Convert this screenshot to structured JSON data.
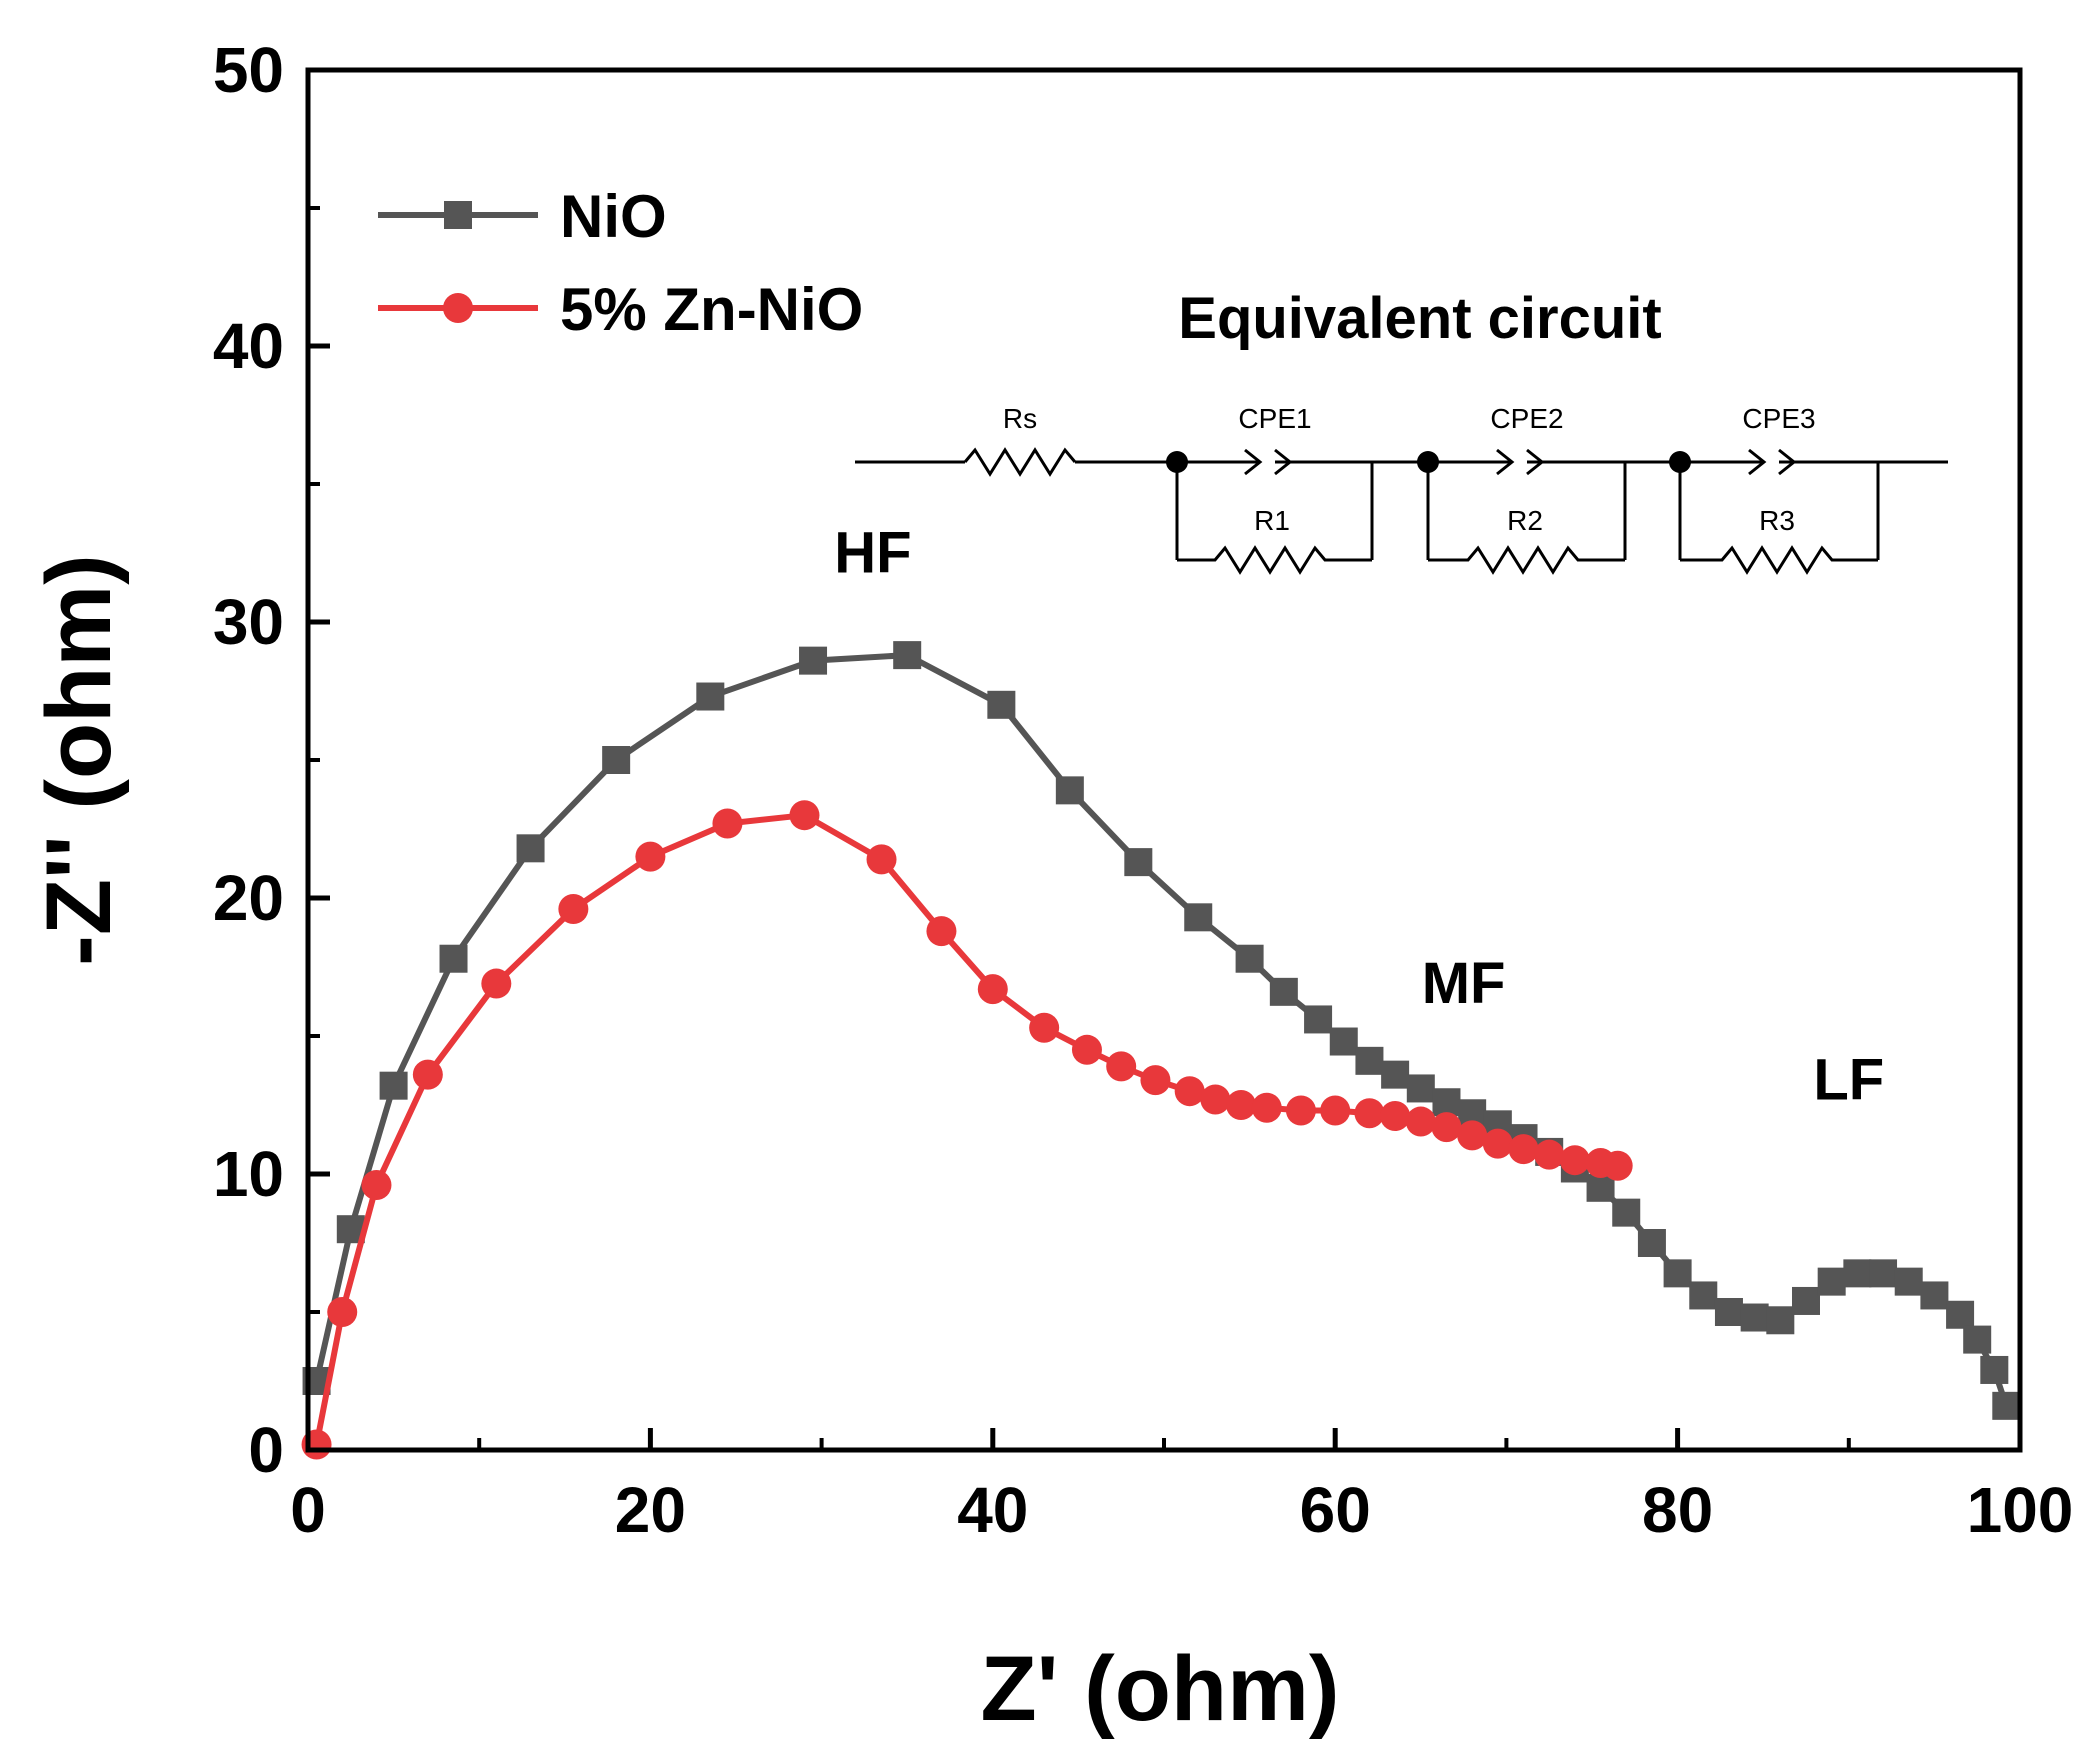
{
  "chart_data": {
    "type": "line",
    "title": "",
    "xlabel": "Z' (ohm)",
    "ylabel": "-Z'' (ohm)",
    "xlim": [
      0,
      100
    ],
    "ylim": [
      0,
      50
    ],
    "xticks": [
      "0",
      "20",
      "40",
      "60",
      "80",
      "100"
    ],
    "yticks": [
      "0",
      "10",
      "20",
      "30",
      "40",
      "50"
    ],
    "legend_position": "top-left",
    "series": [
      {
        "name": "NiO",
        "color": "#555555",
        "marker": "square",
        "points": [
          [
            0.5,
            2.5
          ],
          [
            2.5,
            8.0
          ],
          [
            5.0,
            13.2
          ],
          [
            8.5,
            17.8
          ],
          [
            13.0,
            21.8
          ],
          [
            18.0,
            25.0
          ],
          [
            23.5,
            27.3
          ],
          [
            29.5,
            28.6
          ],
          [
            35.0,
            28.8
          ],
          [
            40.5,
            27.0
          ],
          [
            44.5,
            23.9
          ],
          [
            48.5,
            21.3
          ],
          [
            52.0,
            19.3
          ],
          [
            55.0,
            17.8
          ],
          [
            57.0,
            16.6
          ],
          [
            59.0,
            15.6
          ],
          [
            60.5,
            14.8
          ],
          [
            62.0,
            14.1
          ],
          [
            63.5,
            13.6
          ],
          [
            65.0,
            13.1
          ],
          [
            66.5,
            12.6
          ],
          [
            68.0,
            12.2
          ],
          [
            69.5,
            11.8
          ],
          [
            71.0,
            11.3
          ],
          [
            72.5,
            10.8
          ],
          [
            74.0,
            10.2
          ],
          [
            75.5,
            9.5
          ],
          [
            77.0,
            8.6
          ],
          [
            78.5,
            7.5
          ],
          [
            80.0,
            6.4
          ],
          [
            81.5,
            5.6
          ],
          [
            83.0,
            5.0
          ],
          [
            84.5,
            4.8
          ],
          [
            86.0,
            4.7
          ],
          [
            87.5,
            5.4
          ],
          [
            89.0,
            6.1
          ],
          [
            90.5,
            6.4
          ],
          [
            92.0,
            6.4
          ],
          [
            93.5,
            6.1
          ],
          [
            95.0,
            5.6
          ],
          [
            96.5,
            4.9
          ],
          [
            97.5,
            4.0
          ],
          [
            98.5,
            2.9
          ],
          [
            99.2,
            1.6
          ]
        ]
      },
      {
        "name": "5% Zn-NiO",
        "color": "#e8383b",
        "marker": "circle",
        "points": [
          [
            0.5,
            0.2
          ],
          [
            2.0,
            5.0
          ],
          [
            4.0,
            9.6
          ],
          [
            7.0,
            13.6
          ],
          [
            11.0,
            16.9
          ],
          [
            15.5,
            19.6
          ],
          [
            20.0,
            21.5
          ],
          [
            24.5,
            22.7
          ],
          [
            29.0,
            23.0
          ],
          [
            33.5,
            21.4
          ],
          [
            37.0,
            18.8
          ],
          [
            40.0,
            16.7
          ],
          [
            43.0,
            15.3
          ],
          [
            45.5,
            14.5
          ],
          [
            47.5,
            13.9
          ],
          [
            49.5,
            13.4
          ],
          [
            51.5,
            13.0
          ],
          [
            53.0,
            12.7
          ],
          [
            54.5,
            12.5
          ],
          [
            56.0,
            12.4
          ],
          [
            58.0,
            12.3
          ],
          [
            60.0,
            12.3
          ],
          [
            62.0,
            12.2
          ],
          [
            63.5,
            12.1
          ],
          [
            65.0,
            11.9
          ],
          [
            66.5,
            11.7
          ],
          [
            68.0,
            11.4
          ],
          [
            69.5,
            11.1
          ],
          [
            71.0,
            10.9
          ],
          [
            72.5,
            10.7
          ],
          [
            74.0,
            10.5
          ],
          [
            75.5,
            10.4
          ],
          [
            76.5,
            10.3
          ]
        ]
      }
    ],
    "annotations": [
      {
        "text": "HF",
        "x": 33.0,
        "y": 31.8
      },
      {
        "text": "MF",
        "x": 67.5,
        "y": 16.2
      },
      {
        "text": "LF",
        "x": 90.0,
        "y": 12.7
      }
    ]
  },
  "inset": {
    "title": "Equivalent circuit",
    "labels": [
      "Rs",
      "CPE1",
      "R1",
      "CPE2",
      "R2",
      "CPE3",
      "R3"
    ]
  }
}
